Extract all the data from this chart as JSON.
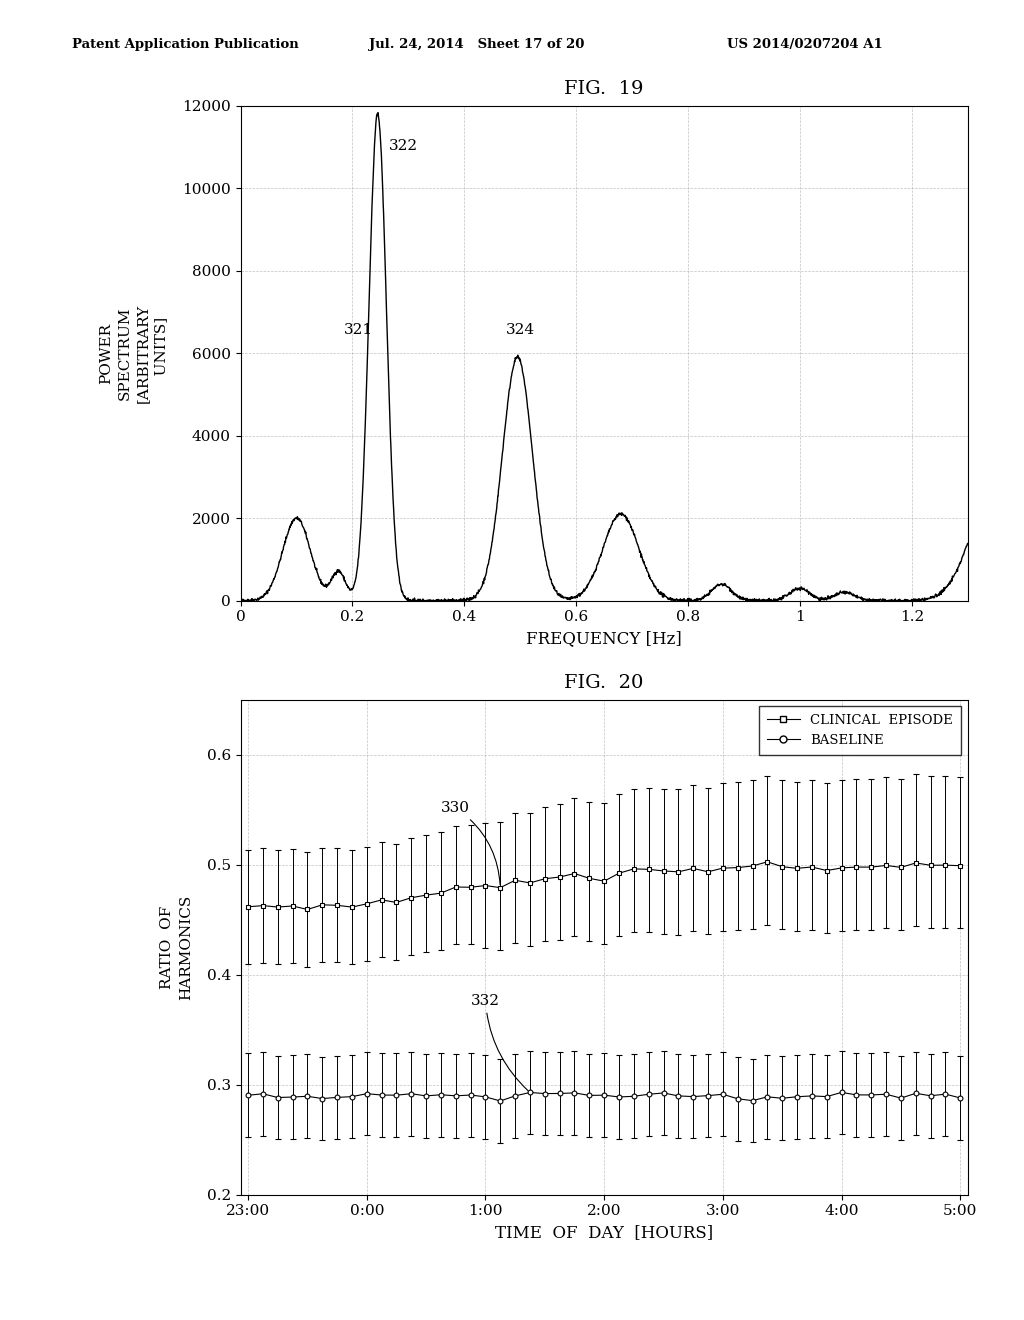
{
  "fig19_title": "FIG.  19",
  "fig20_title": "FIG.  20",
  "header_left": "Patent Application Publication",
  "header_mid": "Jul. 24, 2014   Sheet 17 of 20",
  "header_right": "US 2014/0207204 A1",
  "fig19_ylabel": "POWER\nSPECTRUM\n[ARBITRARY\n   UNITS]",
  "fig19_xlabel": "FREQUENCY [Hz]",
  "fig19_xlim": [
    0,
    1.3
  ],
  "fig19_ylim": [
    0,
    12000
  ],
  "fig19_yticks": [
    0,
    2000,
    4000,
    6000,
    8000,
    10000,
    12000
  ],
  "fig19_xticks": [
    0,
    0.2,
    0.4,
    0.6,
    0.8,
    1.0,
    1.2
  ],
  "fig20_ylabel": "RATIO  OF\nHARMONICS",
  "fig20_xlabel": "TIME  OF  DAY  [HOURS]",
  "fig20_ylim": [
    0.2,
    0.65
  ],
  "fig20_yticks": [
    0.2,
    0.3,
    0.4,
    0.5,
    0.6
  ],
  "fig20_xtick_labels": [
    "23:00",
    "0:00",
    "1:00",
    "2:00",
    "3:00",
    "4:00",
    "5:00"
  ],
  "legend_entries": [
    "CLINICAL  EPISODE",
    "BASELINE"
  ],
  "background_color": "#ffffff",
  "line_color": "#000000"
}
